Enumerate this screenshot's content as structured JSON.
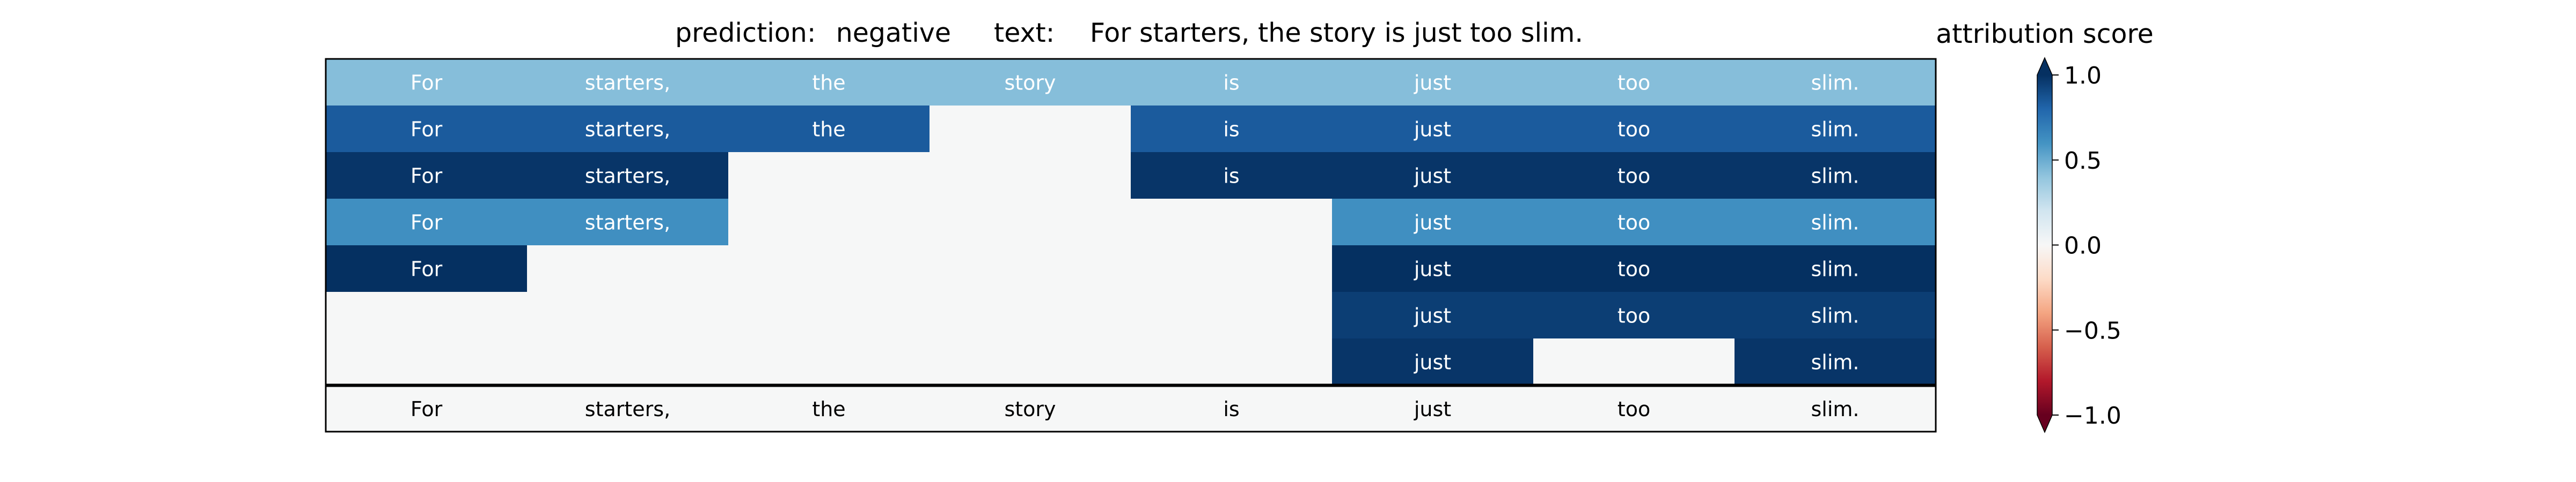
{
  "chart_data": {
    "type": "heatmap",
    "title": {
      "prediction_label": "prediction:",
      "prediction_value": "negative",
      "text_label": "text:",
      "text_value": "For starters, the story is just too slim."
    },
    "tokens": [
      "For",
      "starters,",
      "the",
      "story",
      "is",
      "just",
      "too",
      "slim."
    ],
    "rows": [
      [
        0.43,
        0.43,
        0.43,
        0.43,
        0.43,
        0.43,
        0.43,
        0.43
      ],
      [
        0.84,
        0.84,
        0.84,
        null,
        0.84,
        0.84,
        0.84,
        0.84
      ],
      [
        0.98,
        0.98,
        null,
        null,
        0.98,
        0.98,
        0.98,
        0.98
      ],
      [
        0.62,
        0.62,
        null,
        null,
        null,
        0.62,
        0.62,
        0.62
      ],
      [
        1.0,
        null,
        null,
        null,
        null,
        1.0,
        1.0,
        1.0
      ],
      [
        null,
        null,
        null,
        null,
        null,
        0.95,
        0.95,
        0.95
      ],
      [
        null,
        null,
        null,
        null,
        null,
        0.98,
        null,
        0.98
      ]
    ],
    "colorbar": {
      "title": "attribution score",
      "ticks": [
        "1.0",
        "0.5",
        "0.0",
        "−0.5",
        "−1.0"
      ],
      "range": [
        -1.0,
        1.0
      ],
      "colormap": "RdBu"
    }
  }
}
